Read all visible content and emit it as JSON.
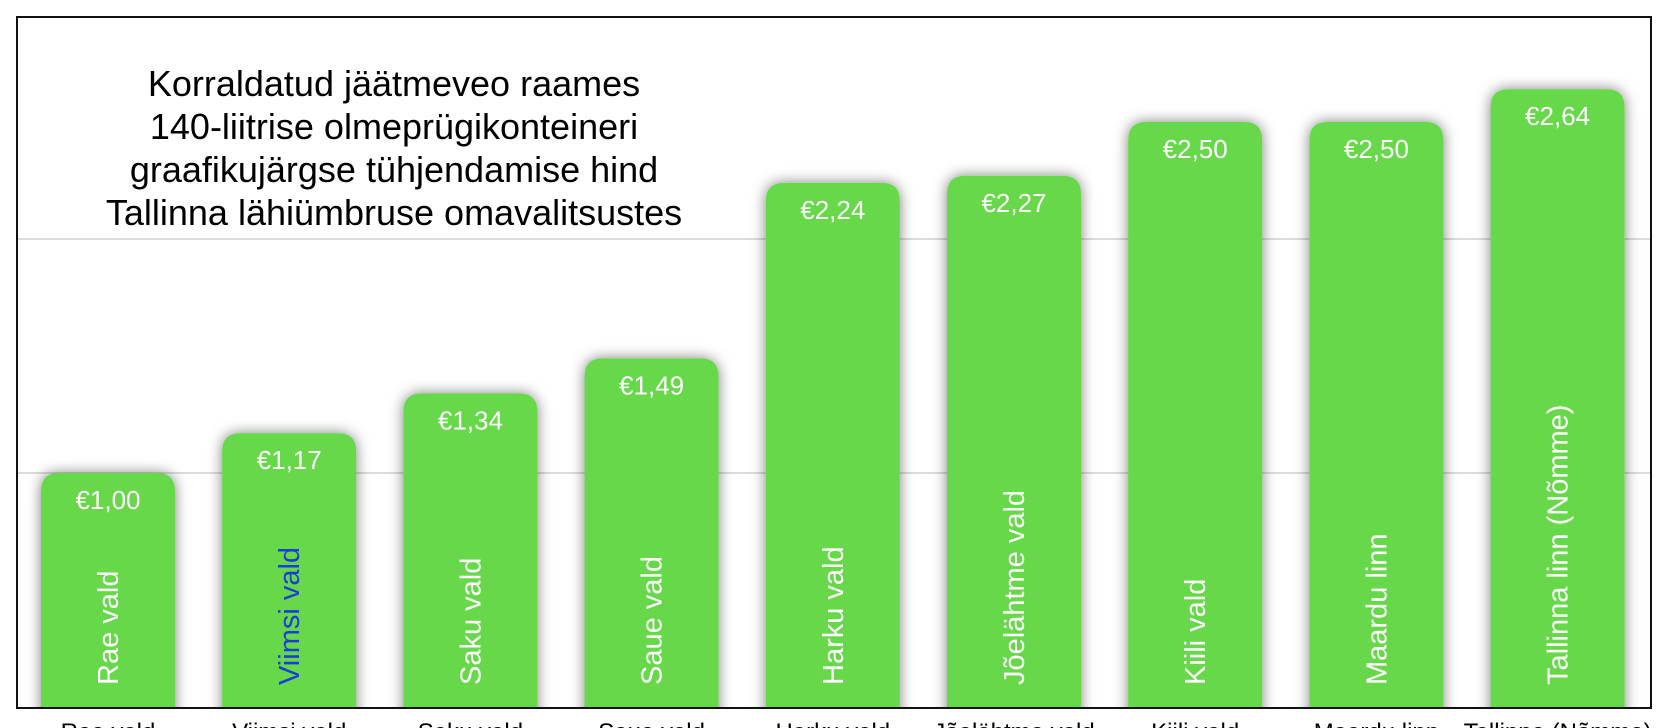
{
  "chart_data": {
    "type": "bar",
    "title_lines": [
      "Korraldatud jäätmeveo raames",
      "140-liitrise olmeprügikonteineri",
      "graafikujärgse tühjendamise hind",
      "Tallinna lähiümbruse omavalitsustes"
    ],
    "categories": [
      "Rae vald",
      "Viimsi vald",
      "Saku vald",
      "Saue vald",
      "Harku vald",
      "Jõelähtme vald",
      "Kiili vald",
      "Maardu linn",
      "Tallinna linn (Nõmme)"
    ],
    "values": [
      1.0,
      1.17,
      1.34,
      1.49,
      2.24,
      2.27,
      2.5,
      2.5,
      2.64
    ],
    "value_labels": [
      "€1,00",
      "€1,17",
      "€1,34",
      "€1,49",
      "€2,24",
      "€2,27",
      "€2,50",
      "€2,50",
      "€2,64"
    ],
    "under_labels": [
      "Rae vald",
      "Viimsi vald",
      "Saku vald",
      "Saue vald",
      "Harku vald",
      "Jõelähtme vald",
      "Kiili vald",
      "Maardu linn",
      "Tallinna (Nõmme)"
    ],
    "ylim": [
      0,
      3
    ],
    "gridlines": [
      1,
      2
    ],
    "grid": true,
    "legend": "none",
    "bar_color": "#66d848",
    "highlight_text_color": "#1a3fd6",
    "highlight": {
      "category_index": 1,
      "word": "Viimsi"
    }
  }
}
